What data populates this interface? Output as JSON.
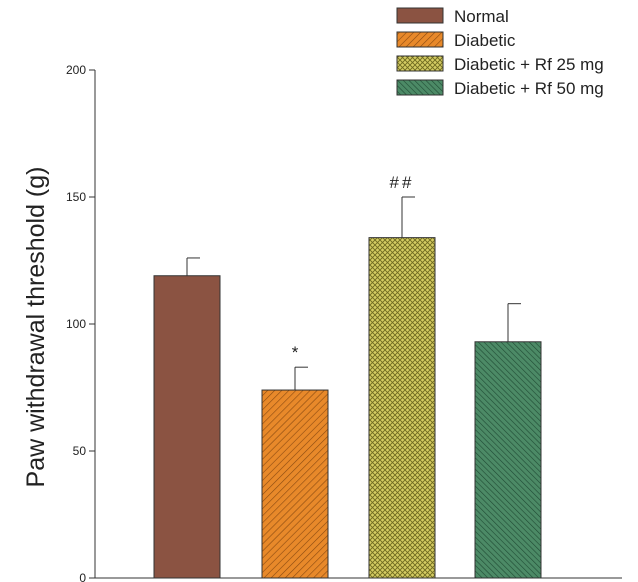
{
  "chart_data": {
    "type": "bar",
    "title": "",
    "xlabel": "",
    "ylabel": "Paw withdrawal threshold (g)",
    "ylim": [
      0,
      200
    ],
    "yticks": [
      0,
      50,
      100,
      150,
      200
    ],
    "grid": false,
    "legend_position": "top-right",
    "categories": [
      "Normal",
      "Diabetic",
      "Diabetic + Rf 25 mg",
      "Diabetic + Rf 50 mg"
    ],
    "values": [
      119,
      74,
      134,
      93
    ],
    "errors": [
      7,
      9,
      16,
      15
    ],
    "annotations": [
      "",
      "*",
      "##",
      ""
    ],
    "colors": [
      "#8B5342",
      "#E8892A",
      "#C9BE55",
      "#3E7A5A"
    ],
    "patterns": [
      "solid",
      "diagonal",
      "crosshatch",
      "diagonal-fine"
    ]
  }
}
